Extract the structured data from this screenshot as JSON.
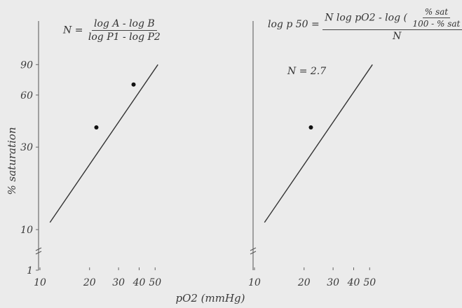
{
  "chart_data": [
    {
      "type": "line",
      "scale": "log-log",
      "xlabel": "pO2 (mmHg)",
      "ylabel": "% saturation",
      "x_ticks": [
        "10",
        "20",
        "30",
        "40",
        "50"
      ],
      "y_ticks": [
        "1",
        "10",
        "30",
        "60",
        "90"
      ],
      "xlim": [
        10,
        60
      ],
      "ylim": [
        1,
        100
      ],
      "formula": {
        "lhs": "N",
        "num": "log A - log B",
        "den": "log P1 - log P2"
      },
      "line": {
        "x": [
          11.5,
          52
        ],
        "y": [
          11,
          90
        ]
      },
      "points": {
        "x": [
          22,
          37
        ],
        "y": [
          39,
          69
        ]
      }
    },
    {
      "type": "line",
      "scale": "log-log",
      "xlabel": "",
      "ylabel": "",
      "x_ticks": [
        "10",
        "20",
        "30",
        "40",
        "50"
      ],
      "xlim": [
        10,
        60
      ],
      "ylim": [
        1,
        100
      ],
      "formula": {
        "lhs": "log p 50",
        "num_prefix": "N log pO2 - log",
        "inner_num": "% sat",
        "inner_den": "100 - % sat",
        "den": "N"
      },
      "annotation": "N = 2.7",
      "line": {
        "x": [
          11.5,
          52
        ],
        "y": [
          11,
          90
        ]
      },
      "points": {
        "x": [
          22
        ],
        "y": [
          39
        ]
      }
    }
  ]
}
